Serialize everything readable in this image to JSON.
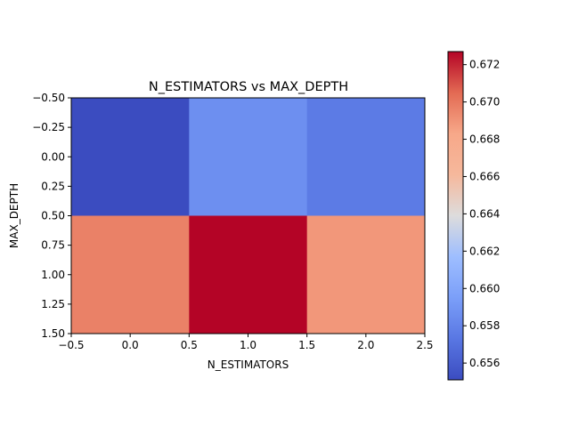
{
  "chart_data": {
    "type": "heatmap",
    "title": "N_ESTIMATORS vs MAX_DEPTH",
    "xlabel": "N_ESTIMATORS",
    "ylabel": "MAX_DEPTH",
    "xlim": [
      -0.5,
      2.5
    ],
    "ylim": [
      1.5,
      -0.5
    ],
    "xticks": [
      -0.5,
      0.0,
      0.5,
      1.0,
      1.5,
      2.0,
      2.5
    ],
    "xtick_labels": [
      "−0.5",
      "0.0",
      "0.5",
      "1.0",
      "1.5",
      "2.0",
      "2.5"
    ],
    "yticks": [
      -0.5,
      -0.25,
      0.0,
      0.25,
      0.5,
      0.75,
      1.0,
      1.25,
      1.5
    ],
    "ytick_labels": [
      "−0.50",
      "−0.25",
      "0.00",
      "0.25",
      "0.50",
      "0.75",
      "1.00",
      "1.25",
      "1.50"
    ],
    "values": [
      [
        0.6551,
        0.6586,
        0.6575
      ],
      [
        0.6697,
        0.6727,
        0.6689
      ]
    ],
    "colorbar": {
      "colormap": "coolwarm",
      "min": 0.6551,
      "max": 0.6727,
      "ticks": [
        0.656,
        0.658,
        0.66,
        0.662,
        0.664,
        0.666,
        0.668,
        0.67,
        0.672
      ],
      "tick_labels": [
        "0.656",
        "0.658",
        "0.660",
        "0.662",
        "0.664",
        "0.666",
        "0.668",
        "0.670",
        "0.672"
      ]
    },
    "grid": false
  }
}
